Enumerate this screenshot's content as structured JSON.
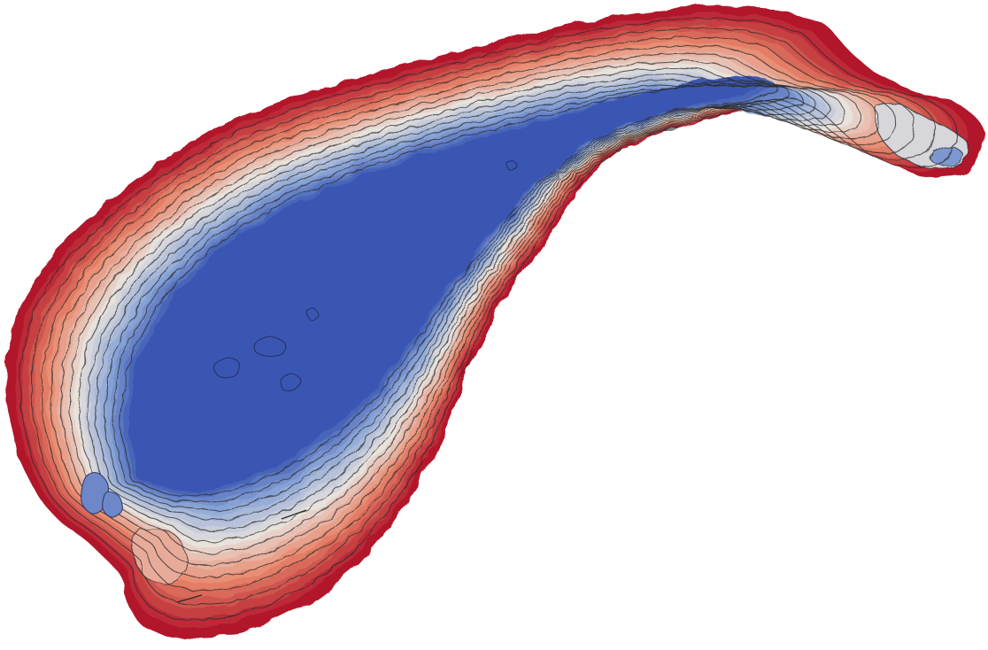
{
  "map": {
    "type": "bathymetric-depth-map",
    "colormap": "coolwarm",
    "colors": {
      "shallow": "#b2182b",
      "mid_shallow": "#e8876c",
      "middle": "#e8e2dc",
      "mid_deep": "#8ea8d8",
      "deep": "#3b56b2",
      "contour_line": "#2b2b2b",
      "background": "#ffffff"
    },
    "contour_levels": 12,
    "legend": null
  }
}
